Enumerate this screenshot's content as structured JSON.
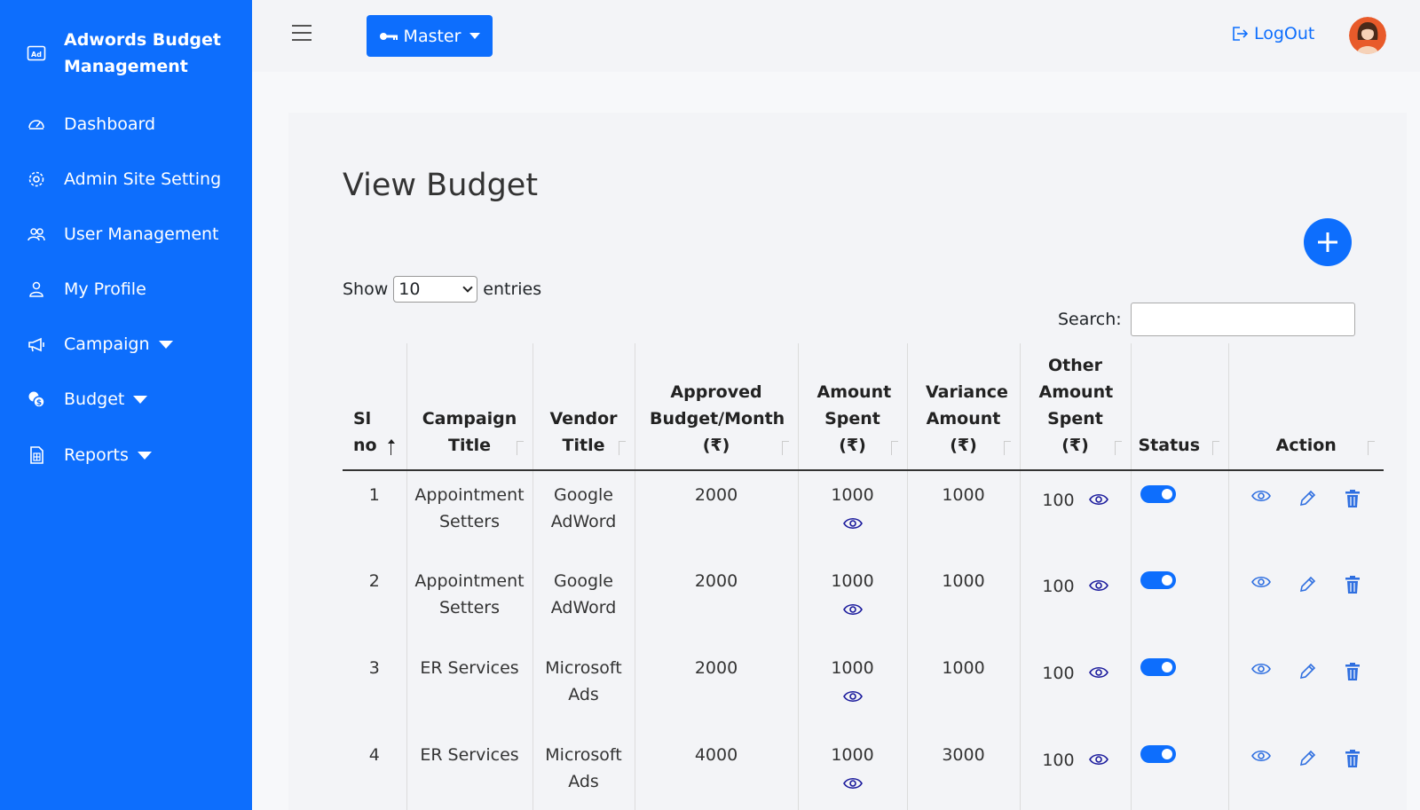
{
  "sidebar": {
    "brand": "Adwords Budget Management",
    "items": [
      {
        "label": "Dashboard",
        "icon": "speedometer-icon"
      },
      {
        "label": "Admin Site Setting",
        "icon": "gear-icon"
      },
      {
        "label": "User Management",
        "icon": "users-icon"
      },
      {
        "label": "My Profile",
        "icon": "person-icon"
      },
      {
        "label": "Campaign",
        "icon": "megaphone-icon"
      },
      {
        "label": "Budget",
        "icon": "coins-icon"
      },
      {
        "label": "Reports",
        "icon": "report-icon"
      }
    ]
  },
  "topbar": {
    "master_label": "Master",
    "logout_label": "LogOut"
  },
  "page": {
    "title": "View Budget",
    "show_label": "Show",
    "entries_label": "entries",
    "page_size": "10",
    "search_label": "Search:",
    "search_value": ""
  },
  "table": {
    "headers": [
      "Sl no",
      "Campaign Title",
      "Vendor Title",
      "Approved Budget/Month (₹)",
      "Amount Spent (₹)",
      "Variance Amount (₹)",
      "Other Amount Spent (₹)",
      "Status",
      "Action"
    ],
    "rows": [
      {
        "sl": "1",
        "campaign": "Appointment Setters",
        "vendor": "Google AdWord",
        "approved": "2000",
        "spent": "1000",
        "variance": "1000",
        "other": "100",
        "status": "on"
      },
      {
        "sl": "2",
        "campaign": "Appointment Setters",
        "vendor": "Google AdWord",
        "approved": "2000",
        "spent": "1000",
        "variance": "1000",
        "other": "100",
        "status": "on"
      },
      {
        "sl": "3",
        "campaign": "ER Services",
        "vendor": "Microsoft Ads",
        "approved": "2000",
        "spent": "1000",
        "variance": "1000",
        "other": "100",
        "status": "on"
      },
      {
        "sl": "4",
        "campaign": "ER Services",
        "vendor": "Microsoft Ads",
        "approved": "4000",
        "spent": "1000",
        "variance": "3000",
        "other": "100",
        "status": "on"
      }
    ]
  },
  "colors": {
    "primary": "#0d6efd",
    "eye": "#1a1a9c",
    "action": "#2f6fe0"
  }
}
